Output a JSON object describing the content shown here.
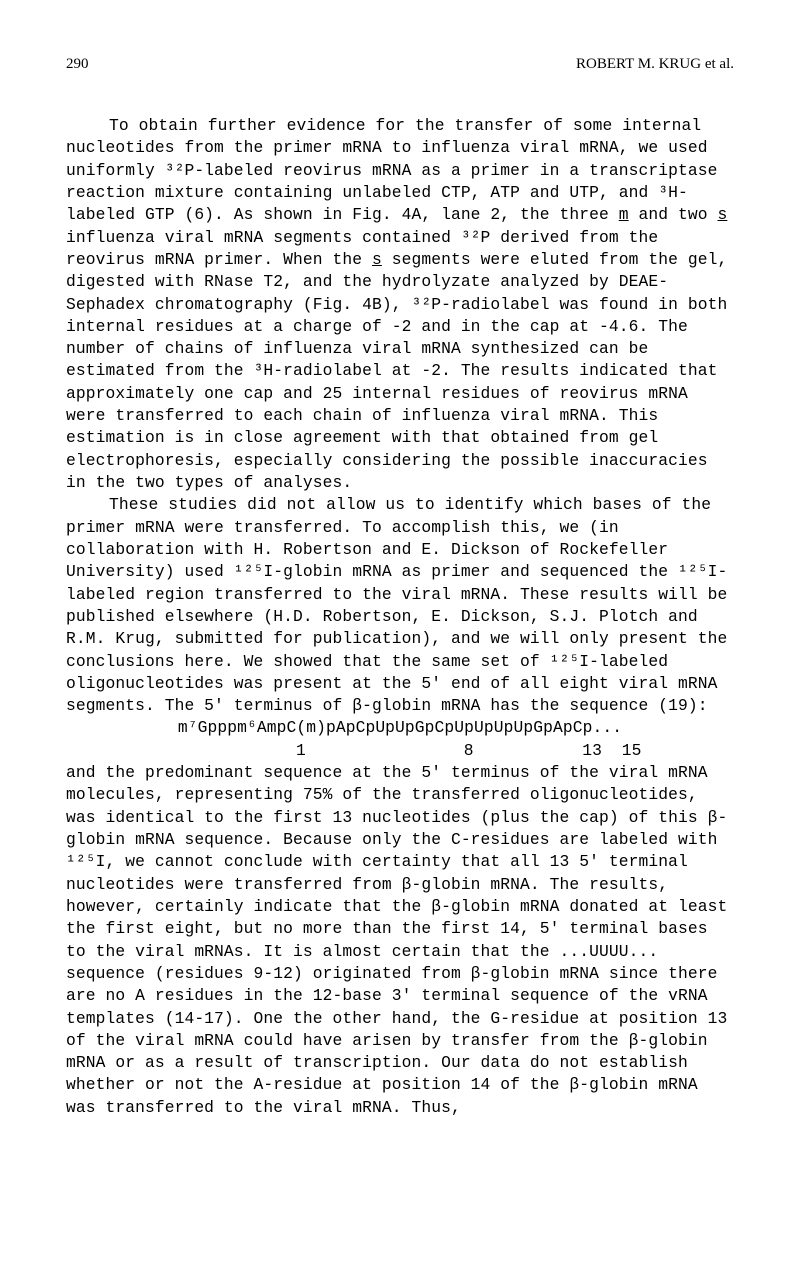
{
  "header": {
    "pageNumber": "290",
    "author": "ROBERT M. KRUG et al."
  },
  "paragraphs": {
    "p1a": "To obtain further evidence for the transfer of some internal nucleotides from the primer mRNA to influenza viral mRNA, we used uniformly ³²P-labeled reovirus mRNA as a primer in a transcriptase reaction mixture containing unlabeled CTP, ATP and UTP, and ³H-labeled GTP (6). As shown in Fig. 4A, lane 2, the three ",
    "p1_m": "m",
    "p1b": " and two ",
    "p1_s1": "s",
    "p1c": " influenza viral mRNA segments contained ³²P derived from the reovirus mRNA primer. When the ",
    "p1_s2": "s",
    "p1d": " segments were eluted from the gel, digested with RNase T2, and the hydrolyzate analyzed by DEAE-Sephadex chromatography (Fig. 4B), ³²P-radiolabel was found in both internal residues at a charge of -2 and in the cap at -4.6. The number of chains of influenza viral mRNA synthesized can be estimated from the ³H-radiolabel at -2. The results indicated that approximately one cap and 25 internal residues of reovirus mRNA were transferred to each chain of influenza viral mRNA. This estimation is in close agreement with that obtained from gel electrophoresis, especially considering the possible inaccuracies in the two types of analyses.",
    "p2": "These studies did not allow us to identify which bases of the primer mRNA were transferred. To accomplish this, we (in collaboration with H. Robertson and E. Dickson of Rockefeller University) used ¹²⁵I-globin mRNA as primer and sequenced the ¹²⁵I-labeled region transferred to the viral mRNA. These results will be published elsewhere (H.D. Robertson, E. Dickson, S.J. Plotch and R.M. Krug, submitted for publication), and we will only present the conclusions here. We showed that the same set of ¹²⁵I-labeled oligonucleotides was present at the 5' end of all eight viral mRNA segments. The 5' terminus of β-globin mRNA has the sequence (19):",
    "seq": "m⁷Gpppm⁶AmpC(m)pApCpUpUpGpCpUpUpUpUpGpApCp...",
    "numline": "1                8           13  15",
    "p3": "and the predominant sequence at the 5' terminus of the viral mRNA molecules, representing 75% of the transferred oligonucleotides, was identical to the first 13 nucleotides (plus the cap) of this β-globin mRNA sequence. Because only the C-residues are labeled with ¹²⁵I, we cannot conclude with certainty that all 13 5' terminal nucleotides were transferred from β-globin mRNA. The results, however, certainly indicate that the β-globin mRNA donated at least the first eight, but no more than the first 14, 5' terminal bases to the viral mRNAs. It is almost certain that the ...UUUU... sequence (residues 9-12) originated from β-globin mRNA since there are no A residues in the 12-base 3' terminal sequence of the vRNA templates (14-17). One the other hand, the G-residue at position 13 of the viral mRNA could have arisen by transfer from the β-globin mRNA or as a result of transcription. Our data do not establish whether or not the A-residue at position 14 of the β-globin mRNA was transferred to the viral mRNA. Thus,"
  },
  "style": {
    "bodyFontSize": 16.3,
    "bodyLineHeight": 1.37,
    "bodyFontFamily": "Courier New, monospace",
    "headerFontFamily": "Times New Roman, serif",
    "headerFontSize": 15,
    "textColor": "#000000",
    "backgroundColor": "#ffffff",
    "indentSize": 43
  }
}
